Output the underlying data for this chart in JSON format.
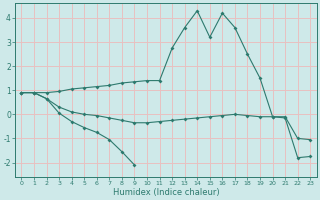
{
  "xlabel": "Humidex (Indice chaleur)",
  "background_color": "#cee9e9",
  "grid_color": "#e8c0c0",
  "line_color": "#2d7a6e",
  "xlim": [
    -0.5,
    23.5
  ],
  "ylim": [
    -2.6,
    4.6
  ],
  "yticks": [
    -2,
    -1,
    0,
    1,
    2,
    3,
    4
  ],
  "xticks": [
    0,
    1,
    2,
    3,
    4,
    5,
    6,
    7,
    8,
    9,
    10,
    11,
    12,
    13,
    14,
    15,
    16,
    17,
    18,
    19,
    20,
    21,
    22,
    23
  ],
  "lines": [
    {
      "x": [
        0,
        1,
        2,
        3,
        4,
        5,
        6,
        7,
        8,
        9
      ],
      "y": [
        0.9,
        0.9,
        0.65,
        0.05,
        -0.3,
        -0.55,
        -0.75,
        -1.05,
        -1.55,
        -2.1
      ]
    },
    {
      "x": [
        0,
        1,
        2,
        3,
        4,
        5,
        6,
        7,
        8,
        9,
        10,
        11,
        12,
        13,
        14,
        15,
        16,
        17,
        18,
        19,
        20,
        21,
        22,
        23
      ],
      "y": [
        0.9,
        0.9,
        0.9,
        0.95,
        1.05,
        1.1,
        1.15,
        1.2,
        1.3,
        1.35,
        1.4,
        1.4,
        2.75,
        3.6,
        4.3,
        3.2,
        4.2,
        3.6,
        2.5,
        1.5,
        -0.1,
        -0.1,
        -1.0,
        -1.05
      ]
    },
    {
      "x": [
        0,
        1,
        2,
        3,
        4,
        5,
        6,
        7,
        8,
        9,
        10,
        11,
        12,
        13,
        14,
        15,
        16,
        17,
        18,
        19,
        20,
        21,
        22,
        23
      ],
      "y": [
        0.9,
        0.9,
        0.65,
        0.3,
        0.1,
        0.0,
        -0.05,
        -0.15,
        -0.25,
        -0.35,
        -0.35,
        -0.3,
        -0.25,
        -0.2,
        -0.15,
        -0.1,
        -0.05,
        0.0,
        -0.05,
        -0.1,
        -0.1,
        -0.15,
        -1.8,
        -1.75
      ]
    }
  ]
}
